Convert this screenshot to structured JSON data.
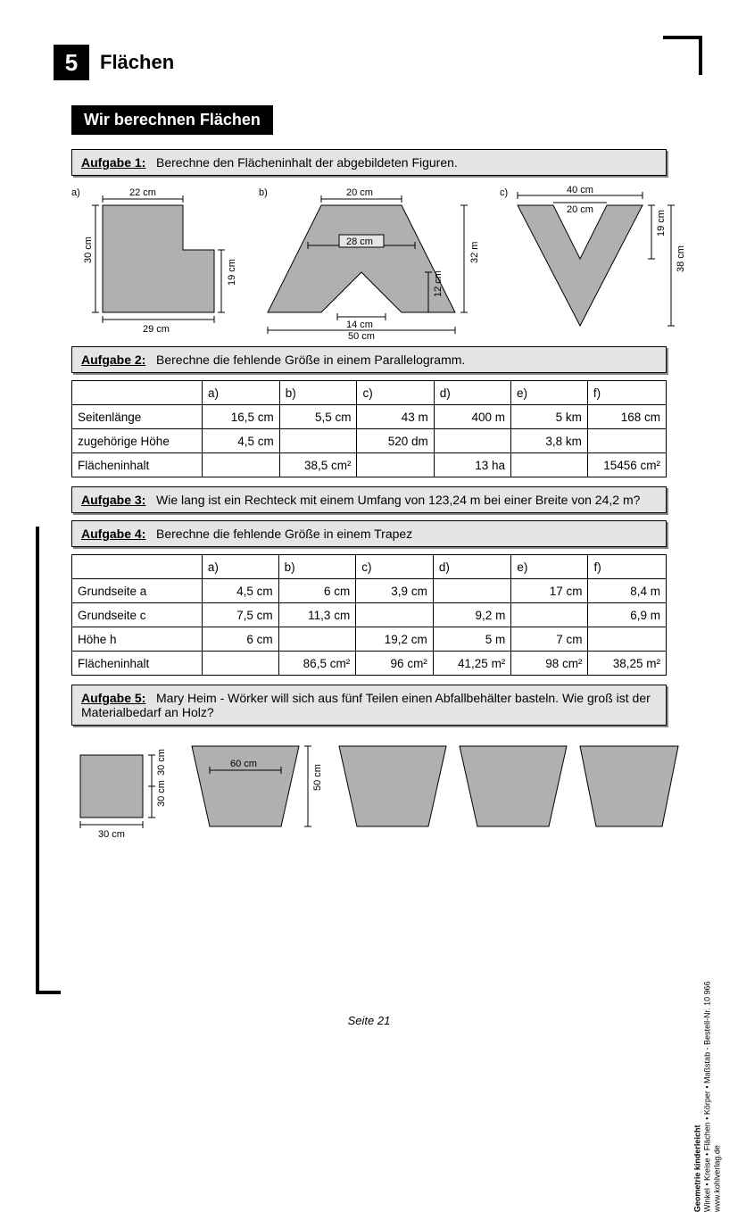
{
  "chapter": {
    "num": "5",
    "title": "Flächen"
  },
  "section_title": "Wir berechnen Flächen",
  "tasks": {
    "t1": {
      "label": "Aufgabe 1:",
      "text": "Berechne den Flächeninhalt der abgebildeten Figuren."
    },
    "t2": {
      "label": "Aufgabe 2:",
      "text": "Berechne die fehlende Größe in einem Parallelogramm."
    },
    "t3": {
      "label": "Aufgabe 3:",
      "text": "Wie lang ist ein Rechteck mit einem Umfang von 123,24 m bei einer Breite von 24,2 m?"
    },
    "t4": {
      "label": "Aufgabe 4:",
      "text": "Berechne die fehlende Größe in einem Trapez"
    },
    "t5": {
      "label": "Aufgabe 5:",
      "text": "Mary Heim - Wörker will sich aus fünf Teilen einen Abfallbehälter basteln. Wie groß ist der Materialbedarf an Holz?"
    }
  },
  "fig1": {
    "a": {
      "label": "a)",
      "top": "22 cm",
      "left": "30 cm",
      "right": "19 cm",
      "bottom": "29 cm"
    },
    "b": {
      "label": "b)",
      "top": "20 cm",
      "mid": "28 cm",
      "right": "32 m",
      "inner_right": "12 cm",
      "inner_bottom": "14 cm",
      "bottom": "50 cm"
    },
    "c": {
      "label": "c)",
      "top_out": "40 cm",
      "top_in": "20 cm",
      "right_in": "19 cm",
      "right_out": "38 cm"
    }
  },
  "table2": {
    "cols": [
      "",
      "a)",
      "b)",
      "c)",
      "d)",
      "e)",
      "f)"
    ],
    "rows": [
      [
        "Seitenlänge",
        "16,5 cm",
        "5,5 cm",
        "43 m",
        "400 m",
        "5 km",
        "168 cm"
      ],
      [
        "zugehörige Höhe",
        "4,5 cm",
        "",
        "520 dm",
        "",
        "3,8 km",
        ""
      ],
      [
        "Flächeninhalt",
        "",
        "38,5 cm²",
        "",
        "13 ha",
        "",
        "15456 cm²"
      ]
    ]
  },
  "table4": {
    "cols": [
      "",
      "a)",
      "b)",
      "c)",
      "d)",
      "e)",
      "f)"
    ],
    "rows": [
      [
        "Grundseite a",
        "4,5 cm",
        "6 cm",
        "3,9 cm",
        "",
        "17 cm",
        "8,4 m"
      ],
      [
        "Grundseite c",
        "7,5 cm",
        "11,3 cm",
        "",
        "9,2 m",
        "",
        "6,9 m"
      ],
      [
        "Höhe h",
        "6 cm",
        "",
        "19,2 cm",
        "5 m",
        "7 cm",
        ""
      ],
      [
        "Flächeninhalt",
        "",
        "86,5 cm²",
        "96 cm²",
        "41,25 m²",
        "98 cm²",
        "38,25 m²"
      ]
    ]
  },
  "fig5": {
    "sq_bottom": "30 cm",
    "sq_right1": "30 cm",
    "sq_right2": "30 cm",
    "trap_inner": "60 cm",
    "trap_right": "50 cm"
  },
  "footer": "Seite 21",
  "side": {
    "l1": "Geometrie kinderleicht",
    "l2": "Winkel • Kreise • Flächen • Körper • Maßstab   -   Bestell-Nr. 10 966",
    "l3": "www.kohlverlag.de"
  },
  "colors": {
    "shape_fill": "#b0b0b0",
    "shape_stroke": "#000000"
  }
}
